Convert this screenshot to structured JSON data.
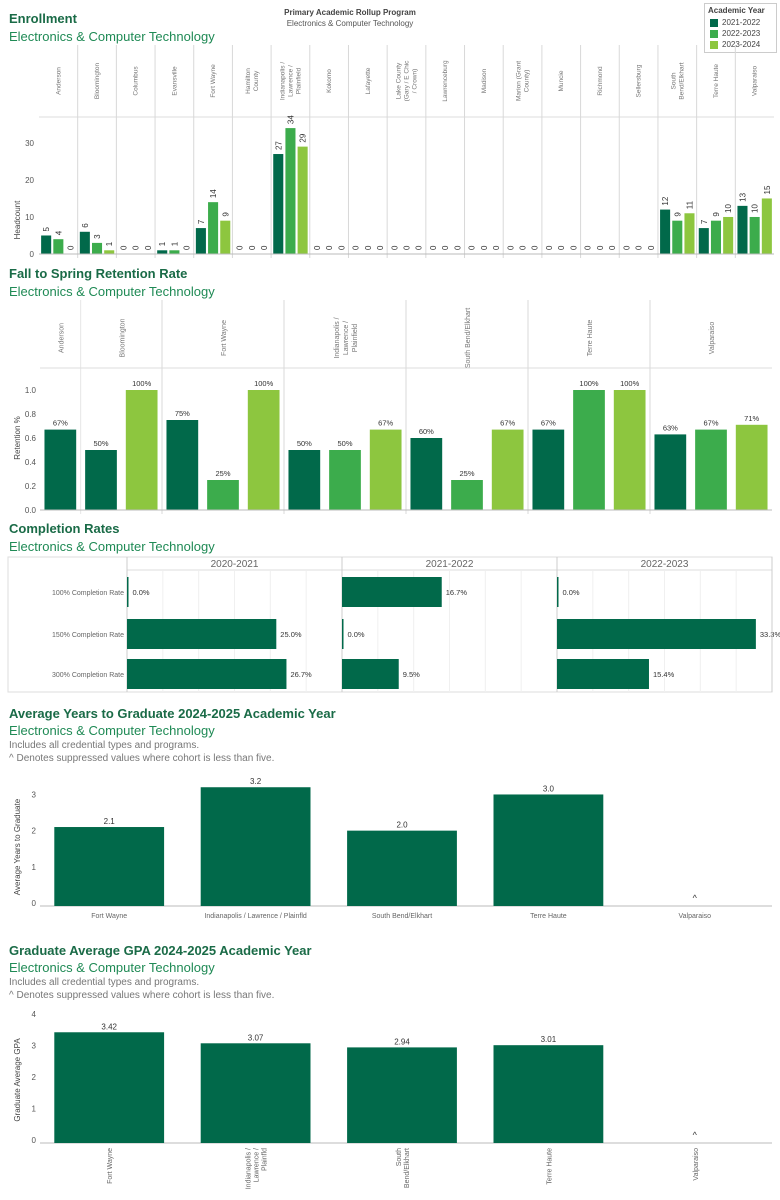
{
  "colors": {
    "y1": "#01694a",
    "y2": "#3cac4c",
    "y3": "#8dc63f",
    "title": "#1a6b47",
    "subtitle": "#1f8a55"
  },
  "header": {
    "filter_label": "Primary Academic Rollup Program",
    "filter_value": "Electronics & Computer Technology",
    "legend_title": "Academic Year",
    "legend": [
      "2021-2022",
      "2022-2023",
      "2023-2024"
    ]
  },
  "enrollment": {
    "title": "Enrollment",
    "subtitle": "Electronics & Computer Technology",
    "ylabel": "Headcount",
    "yticks": [
      "0",
      "10",
      "20",
      "30"
    ]
  },
  "retention": {
    "title": "Fall to Spring Retention Rate",
    "subtitle": "Electronics & Computer Technology",
    "ylabel": "Retention %",
    "yticks": [
      "0.0",
      "0.2",
      "0.4",
      "0.6",
      "0.8",
      "1.0"
    ]
  },
  "completion": {
    "title": "Completion Rates",
    "subtitle": "Electronics & Computer Technology"
  },
  "years_grad": {
    "title": "Average Years to Graduate 2024-2025 Academic Year",
    "subtitle": "Electronics & Computer Technology",
    "note1": "Includes all credential types and programs.",
    "note2": "^ Denotes suppressed values where cohort is less than five.",
    "ylabel": "Average Years to Graduate",
    "yticks": [
      "0",
      "1",
      "2",
      "3"
    ]
  },
  "gpa": {
    "title": "Graduate Average GPA 2024-2025 Academic Year",
    "subtitle": "Electronics & Computer Technology",
    "note1": "Includes all credential types and programs.",
    "note2": "^ Denotes suppressed values where cohort is less than five.",
    "ylabel": "Graduate Average GPA",
    "yticks": [
      "0",
      "1",
      "2",
      "3",
      "4"
    ]
  },
  "chart_data": [
    {
      "type": "bar",
      "categories": [
        "Anderson",
        "Bloomington",
        "Columbus",
        "Evansville",
        "Fort Wayne",
        "Hamilton County",
        "Indianapolis / Lawrence / Plainfield",
        "Kokomo",
        "Lafayette",
        "Lake County (Gary / E Chic / Crown)",
        "Lawrenceburg",
        "Madison",
        "Marion (Grant County)",
        "Muncie",
        "Richmond",
        "Sellersburg",
        "South Bend/Elkhart",
        "Terre Haute",
        "Valparaiso"
      ],
      "series": [
        {
          "name": "2021-2022",
          "values": [
            5,
            6,
            0,
            1,
            7,
            0,
            27,
            0,
            0,
            0,
            0,
            0,
            0,
            0,
            0,
            0,
            12,
            7,
            13
          ]
        },
        {
          "name": "2022-2023",
          "values": [
            4,
            3,
            0,
            1,
            14,
            0,
            34,
            0,
            0,
            0,
            0,
            0,
            0,
            0,
            0,
            0,
            9,
            9,
            10
          ]
        },
        {
          "name": "2023-2024",
          "values": [
            0,
            1,
            0,
            0,
            9,
            0,
            29,
            0,
            0,
            0,
            0,
            0,
            0,
            0,
            0,
            0,
            11,
            10,
            15
          ]
        }
      ],
      "ylim": [
        0,
        37
      ]
    },
    {
      "type": "bar",
      "categories": [
        "Anderson",
        "Bloomington",
        "Fort Wayne",
        "Indianapolis / Lawrence / Plainfield",
        "South Bend/Elkhart",
        "Terre Haute",
        "Valparaiso"
      ],
      "bars": [
        {
          "cat": 0,
          "year": 0,
          "value": 0.67,
          "label": "67%"
        },
        {
          "cat": 1,
          "year": 0,
          "value": 0.5,
          "label": "50%"
        },
        {
          "cat": 1,
          "year": 2,
          "value": 1.0,
          "label": "100%"
        },
        {
          "cat": 2,
          "year": 0,
          "value": 0.75,
          "label": "75%"
        },
        {
          "cat": 2,
          "year": 1,
          "value": 0.25,
          "label": "25%"
        },
        {
          "cat": 2,
          "year": 2,
          "value": 1.0,
          "label": "100%"
        },
        {
          "cat": 3,
          "year": 0,
          "value": 0.5,
          "label": "50%"
        },
        {
          "cat": 3,
          "year": 1,
          "value": 0.5,
          "label": "50%"
        },
        {
          "cat": 3,
          "year": 2,
          "value": 0.67,
          "label": "67%"
        },
        {
          "cat": 4,
          "year": 0,
          "value": 0.6,
          "label": "60%"
        },
        {
          "cat": 4,
          "year": 1,
          "value": 0.25,
          "label": "25%"
        },
        {
          "cat": 4,
          "year": 2,
          "value": 0.67,
          "label": "67%"
        },
        {
          "cat": 5,
          "year": 0,
          "value": 0.67,
          "label": "67%"
        },
        {
          "cat": 5,
          "year": 1,
          "value": 1.0,
          "label": "100%"
        },
        {
          "cat": 5,
          "year": 2,
          "value": 1.0,
          "label": "100%"
        },
        {
          "cat": 6,
          "year": 0,
          "value": 0.63,
          "label": "63%"
        },
        {
          "cat": 6,
          "year": 1,
          "value": 0.67,
          "label": "67%"
        },
        {
          "cat": 6,
          "year": 2,
          "value": 0.71,
          "label": "71%"
        }
      ],
      "ylim": [
        0,
        1.15
      ]
    },
    {
      "type": "bar",
      "panels": [
        "2020-2021",
        "2021-2022",
        "2022-2023"
      ],
      "rows": [
        "100% Completion Rate",
        "150% Completion Rate",
        "300% Completion Rate"
      ],
      "values": [
        [
          0.0,
          25.0,
          26.7
        ],
        [
          16.7,
          0.0,
          9.5
        ],
        [
          0.0,
          33.3,
          15.4
        ]
      ],
      "labels": [
        [
          "0.0%",
          "25.0%",
          "26.7%"
        ],
        [
          "16.7%",
          "0.0%",
          "9.5%"
        ],
        [
          "0.0%",
          "33.3%",
          "15.4%"
        ]
      ],
      "xlim": [
        0,
        36
      ]
    },
    {
      "type": "bar",
      "categories": [
        "Fort Wayne",
        "Indianapolis / Lawrence / Plainfld",
        "South Bend/Elkhart",
        "Terre Haute",
        "Valparaiso"
      ],
      "values": [
        2.1,
        3.2,
        2.0,
        3.0,
        null
      ],
      "labels": [
        "2.1",
        "3.2",
        "2.0",
        "3.0",
        "^"
      ],
      "ylim": [
        0,
        3.4
      ]
    },
    {
      "type": "bar",
      "categories": [
        "Fort Wayne",
        "Indianapolis / Lawrence / Plainfld",
        "South Bend/Elkhart",
        "Terre Haute",
        "Valparaiso"
      ],
      "values": [
        3.42,
        3.07,
        2.94,
        3.01,
        null
      ],
      "labels": [
        "3.42",
        "3.07",
        "2.94",
        "3.01",
        "^"
      ],
      "ylim": [
        0,
        4
      ]
    }
  ]
}
